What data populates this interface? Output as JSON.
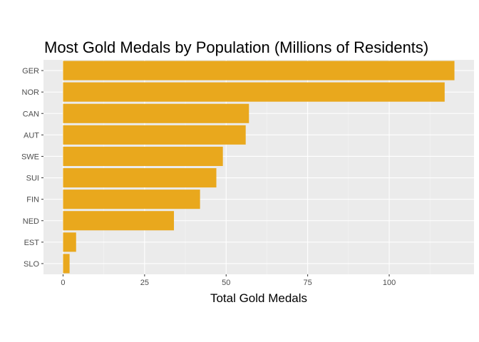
{
  "chart_data": {
    "type": "bar",
    "orientation": "horizontal",
    "title": "Most Gold Medals by Population (Millions of Residents)",
    "xlabel": "Total Gold Medals",
    "ylabel": "",
    "categories": [
      "GER",
      "NOR",
      "CAN",
      "AUT",
      "SWE",
      "SUI",
      "FIN",
      "NED",
      "EST",
      "SLO"
    ],
    "values": [
      120,
      117,
      57,
      56,
      49,
      47,
      42,
      34,
      4,
      2
    ],
    "xlim": [
      -6,
      126
    ],
    "xticks": [
      0,
      25,
      50,
      75,
      100
    ],
    "xtick_labels": [
      "0",
      "25",
      "50",
      "75",
      "100"
    ],
    "grid": true,
    "colors": {
      "bar": "#E9A81D",
      "panel": "#EBEBEB",
      "grid_major": "#FFFFFF",
      "grid_minor": "#F5F5F5"
    }
  }
}
